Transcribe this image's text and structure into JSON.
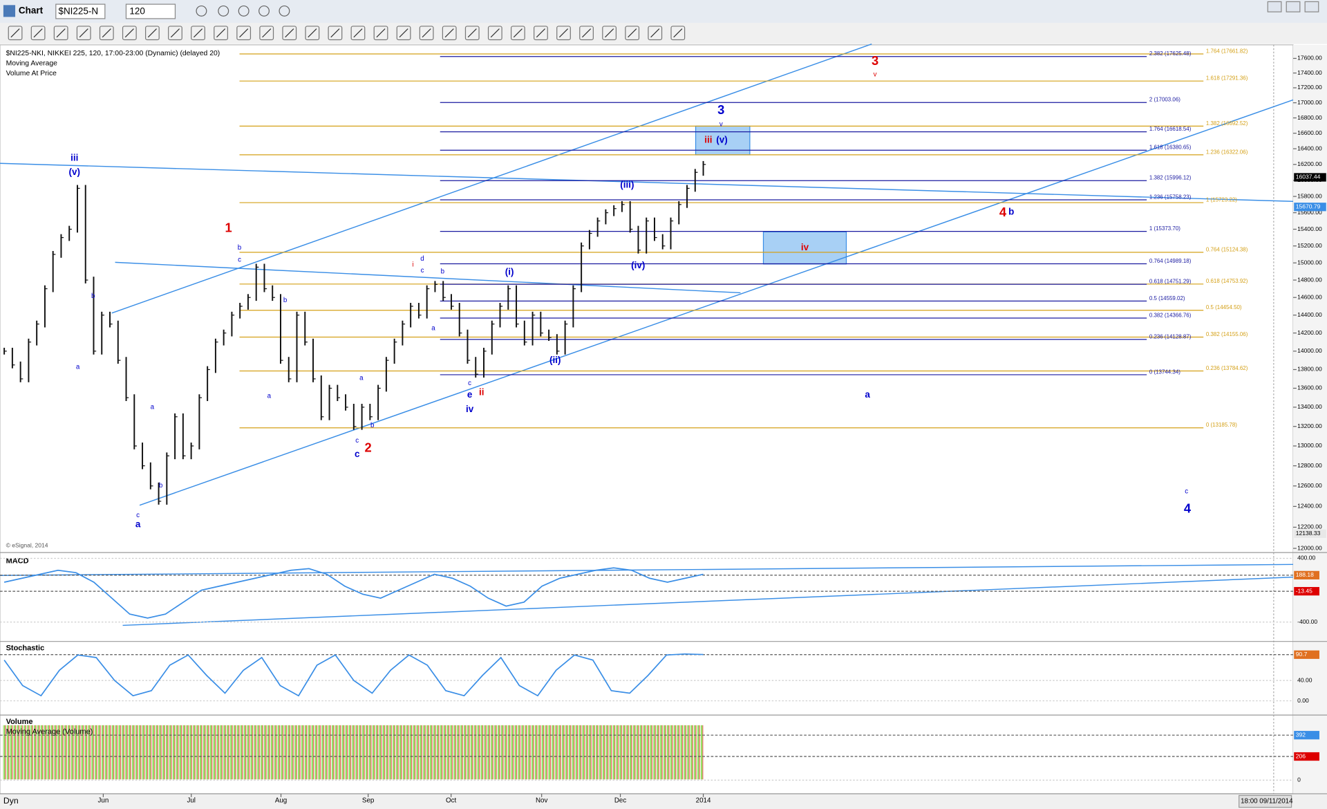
{
  "toolbar": {
    "title": "Chart",
    "symbol": "$NI225-N",
    "interval": "120"
  },
  "chart": {
    "header": [
      "$NI225-NKI, NIKKEI 225, 120, 17:00-23:00 (Dynamic) (delayed 20)",
      "Moving Average",
      "Volume At Price"
    ],
    "copyright": "© eSignal, 2014",
    "log_scale": true,
    "ylim": [
      12000,
      17600
    ],
    "yticks": [
      {
        "value": 12000,
        "label": "12000.00"
      },
      {
        "value": 12200,
        "label": "12200.00"
      },
      {
        "value": 12400,
        "label": "12400.00"
      },
      {
        "value": 12600,
        "label": "12600.00"
      },
      {
        "value": 12800,
        "label": "12800.00"
      },
      {
        "value": 13000,
        "label": "13000.00"
      },
      {
        "value": 13200,
        "label": "13200.00"
      },
      {
        "value": 13400,
        "label": "13400.00"
      },
      {
        "value": 13600,
        "label": "13600.00"
      },
      {
        "value": 13800,
        "label": "13800.00"
      },
      {
        "value": 14000,
        "label": "14000.00"
      },
      {
        "value": 14200,
        "label": "14200.00"
      },
      {
        "value": 14400,
        "label": "14400.00"
      },
      {
        "value": 14600,
        "label": "14600.00"
      },
      {
        "value": 14800,
        "label": "14800.00"
      },
      {
        "value": 15000,
        "label": "15000.00"
      },
      {
        "value": 15200,
        "label": "15200.00"
      },
      {
        "value": 15400,
        "label": "15400.00"
      },
      {
        "value": 15600,
        "label": "15600.00"
      },
      {
        "value": 15800,
        "label": "15800.00"
      },
      {
        "value": 16000,
        "label": "16000.00"
      },
      {
        "value": 16200,
        "label": "16200.00"
      },
      {
        "value": 16400,
        "label": "16400.00"
      },
      {
        "value": 16600,
        "label": "16600.00"
      },
      {
        "value": 16800,
        "label": "16800.00"
      },
      {
        "value": 17000,
        "label": "17000.00"
      },
      {
        "value": 17200,
        "label": "17200.00"
      },
      {
        "value": 17400,
        "label": "17400.00"
      },
      {
        "value": 17600,
        "label": "17600.00"
      }
    ],
    "price_tags": [
      {
        "value": 16037.44,
        "color": "#000000"
      },
      {
        "value": 15670.79,
        "color": "#3a8ee6"
      },
      {
        "value": 12138.33,
        "color": "#e8e8e8"
      }
    ],
    "bar_color": "#111111",
    "closes": [
      14000,
      13850,
      13700,
      14100,
      14300,
      14700,
      15100,
      15300,
      15400,
      15900,
      14800,
      14000,
      14400,
      14300,
      13900,
      13500,
      13000,
      12800,
      12600,
      12450,
      12900,
      13300,
      12900,
      13000,
      13500,
      13800,
      14100,
      14200,
      14400,
      14500,
      14600,
      14950,
      14700,
      14600,
      13900,
      13700,
      14400,
      14100,
      13700,
      13300,
      13600,
      13500,
      13400,
      13200,
      13400,
      13300,
      13600,
      13900,
      14100,
      14300,
      14500,
      14400,
      14700,
      14750,
      14600,
      14500,
      14200,
      13900,
      13750,
      14000,
      14300,
      14500,
      14700,
      14300,
      14100,
      14400,
      14200,
      14150,
      14000,
      14300,
      14700,
      15200,
      15350,
      15500,
      15600,
      15650,
      15700,
      15400,
      15150,
      15500,
      15300,
      15200,
      15500,
      15700,
      15900,
      16100,
      16200
    ],
    "blue_color": "#1a1aa0",
    "gold_color": "#d4a017",
    "blue_levels": [
      {
        "value": 17625.48,
        "label": "2.382 (17625.48)"
      },
      {
        "value": 17003.06,
        "label": "2 (17003.06)"
      },
      {
        "value": 16618.54,
        "label": "1.764 (16618.54)"
      },
      {
        "value": 16380.65,
        "label": "1.618 (16380.65)"
      },
      {
        "value": 15996.12,
        "label": "1.382 (15996.12)"
      },
      {
        "value": 15758.23,
        "label": "1.236 (15758.23)"
      },
      {
        "value": 15373.7,
        "label": "1 (15373.70)"
      },
      {
        "value": 14989.18,
        "label": "0.764 (14989.18)"
      },
      {
        "value": 14751.29,
        "label": "0.618 (14751.29)"
      },
      {
        "value": 14559.02,
        "label": "0.5 (14559.02)"
      },
      {
        "value": 14366.76,
        "label": "0.382 (14366.76)"
      },
      {
        "value": 14128.87,
        "label": "0.236 (14128.87)"
      },
      {
        "value": 13744.34,
        "label": "0 (13744.34)"
      }
    ],
    "gold_levels": [
      {
        "value": 17661.82,
        "label": "1.764 (17661.82)"
      },
      {
        "value": 17291.36,
        "label": "1.618 (17291.36)"
      },
      {
        "value": 16692.52,
        "label": "1.382 (16692.52)"
      },
      {
        "value": 16322.06,
        "label": "1.236 (16322.06)"
      },
      {
        "value": 15723.22,
        "label": "1 (15723.22)"
      },
      {
        "value": 15124.38,
        "label": "0.764 (15124.38)"
      },
      {
        "value": 14753.92,
        "label": "0.618 (14753.92)"
      },
      {
        "value": 14454.5,
        "label": "0.5 (14454.50)"
      },
      {
        "value": 14155.06,
        "label": "0.382 (14155.06)"
      },
      {
        "value": 13784.62,
        "label": "0.236 (13784.62)"
      },
      {
        "value": 13185.78,
        "label": "0 (13185.78)"
      }
    ],
    "wave_labels": [
      {
        "text": "iii",
        "color": "#0000cc"
      },
      {
        "text": "(v)",
        "color": "#0000cc"
      },
      {
        "text": "1",
        "color": "#dd0000"
      },
      {
        "text": "b",
        "color": "#0000cc"
      },
      {
        "text": "c",
        "color": "#0000cc"
      },
      {
        "text": "a",
        "color": "#0000cc"
      },
      {
        "text": "b",
        "color": "#0000cc"
      },
      {
        "text": "a",
        "color": "#0000cc"
      },
      {
        "text": "b",
        "color": "#0000cc"
      },
      {
        "text": "c",
        "color": "#0000cc"
      },
      {
        "text": "a",
        "color": "#0000cc"
      },
      {
        "text": "b",
        "color": "#0000cc"
      },
      {
        "text": "a",
        "color": "#0000cc"
      },
      {
        "text": "a",
        "color": "#0000cc"
      },
      {
        "text": "b",
        "color": "#0000cc"
      },
      {
        "text": "c",
        "color": "#0000cc"
      },
      {
        "text": "c",
        "color": "#0000cc"
      },
      {
        "text": "2",
        "color": "#dd0000"
      },
      {
        "text": "i",
        "color": "#dd0000"
      },
      {
        "text": "d",
        "color": "#0000cc"
      },
      {
        "text": "c",
        "color": "#0000cc"
      },
      {
        "text": "b",
        "color": "#0000cc"
      },
      {
        "text": "a",
        "color": "#0000cc"
      },
      {
        "text": "c",
        "color": "#0000cc"
      },
      {
        "text": "e",
        "color": "#0000cc"
      },
      {
        "text": "ii",
        "color": "#dd0000"
      },
      {
        "text": "iv",
        "color": "#0000cc"
      },
      {
        "text": "(i)",
        "color": "#0000cc"
      },
      {
        "text": "(ii)",
        "color": "#0000cc"
      },
      {
        "text": "(iii)",
        "color": "#0000cc"
      },
      {
        "text": "(iv)",
        "color": "#0000cc"
      },
      {
        "text": "iii",
        "color": "#dd0000"
      },
      {
        "text": "(v)",
        "color": "#0000cc"
      },
      {
        "text": "3",
        "color": "#0000cc"
      },
      {
        "text": "v",
        "color": "#0000cc"
      },
      {
        "text": "3",
        "color": "#dd0000"
      },
      {
        "text": "v",
        "color": "#dd0000"
      },
      {
        "text": "iv",
        "color": "#dd0000"
      },
      {
        "text": "4",
        "color": "#dd0000"
      },
      {
        "text": "b",
        "color": "#0000cc"
      },
      {
        "text": "a",
        "color": "#0000cc"
      },
      {
        "text": "c",
        "color": "#0000cc"
      },
      {
        "text": "4",
        "color": "#0000cc"
      }
    ],
    "x_labels": [
      "Jun",
      "Jul",
      "Aug",
      "Sep",
      "Oct",
      "Nov",
      "Dec",
      "2014"
    ]
  },
  "macd": {
    "title": "MACD",
    "ylim": [
      -580,
      440
    ],
    "yticks": [
      {
        "value": 400,
        "label": "400.00"
      },
      {
        "value": -400,
        "label": "-400.00"
      }
    ],
    "color": "#3a8ee6",
    "tags": [
      {
        "value": 188.18,
        "color": "#e07020"
      },
      {
        "value": -13.45,
        "color": "#dd0000"
      }
    ],
    "values": [
      100,
      150,
      200,
      250,
      220,
      100,
      -100,
      -300,
      -350,
      -300,
      -150,
      0,
      50,
      100,
      150,
      200,
      250,
      270,
      200,
      50,
      -50,
      -100,
      0,
      100,
      200,
      150,
      50,
      -100,
      -200,
      -150,
      50,
      150,
      200,
      250,
      280,
      250,
      150,
      100,
      150,
      200
    ]
  },
  "stochastic": {
    "title": "Stochastic",
    "ylim": [
      -23,
      110
    ],
    "yticks": [
      {
        "value": 40,
        "label": "40.00"
      },
      {
        "value": 0,
        "label": "0.00"
      }
    ],
    "color": "#3a8ee6",
    "tags": [
      {
        "value": 90.7,
        "color": "#e07020"
      }
    ],
    "values": [
      80,
      30,
      10,
      60,
      90,
      85,
      40,
      10,
      20,
      70,
      90,
      50,
      15,
      60,
      85,
      30,
      10,
      70,
      90,
      40,
      15,
      60,
      90,
      70,
      20,
      10,
      50,
      85,
      30,
      10,
      60,
      90,
      80,
      20,
      15,
      50,
      90,
      92,
      91
    ]
  },
  "volume": {
    "title": "Volume",
    "subtitle": "Moving Average (Volume)",
    "ylim": [
      -97,
      545
    ],
    "yticks": [
      0
    ],
    "tags": [
      {
        "value": 392,
        "color": "#3a8ee6"
      },
      {
        "value": 206,
        "color": "#dd0000"
      }
    ]
  },
  "status": {
    "mode": "Dyn",
    "timestamp": "18:00 09/11/2014"
  }
}
